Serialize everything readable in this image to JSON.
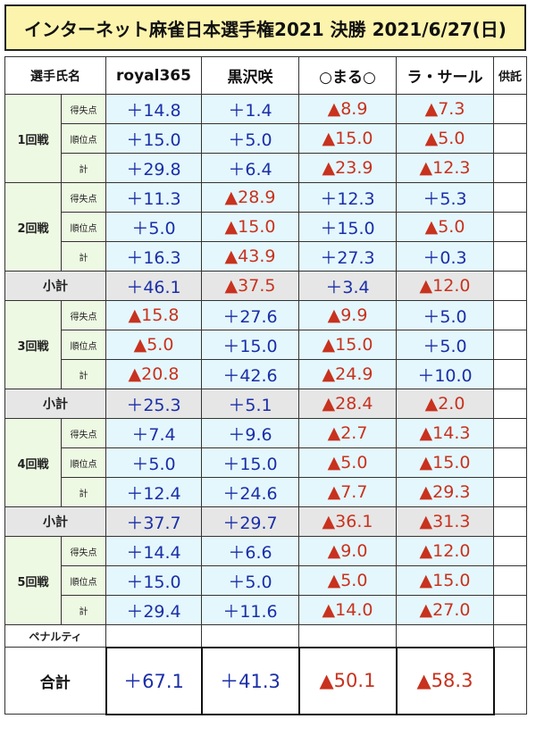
{
  "title": "インターネット麻雀日本選手権2021 決勝 2021/6/27(日)",
  "header": {
    "player_label": "選手氏名",
    "players": [
      "royal365",
      "黒沢咲",
      "○まる○",
      "ラ・サール"
    ],
    "deposit_label": "供託"
  },
  "row_labels": {
    "score": "得失点",
    "rank": "順位点",
    "total": "計"
  },
  "rounds": [
    {
      "name": "1回戦",
      "score": [
        "＋14.8",
        "＋1.4",
        "▲8.9",
        "▲7.3"
      ],
      "rank": [
        "＋15.0",
        "＋5.0",
        "▲15.0",
        "▲5.0"
      ],
      "total": [
        "＋29.8",
        "＋6.4",
        "▲23.9",
        "▲12.3"
      ]
    },
    {
      "name": "2回戦",
      "score": [
        "＋11.3",
        "▲28.9",
        "＋12.3",
        "＋5.3"
      ],
      "rank": [
        "＋5.0",
        "▲15.0",
        "＋15.0",
        "▲5.0"
      ],
      "total": [
        "＋16.3",
        "▲43.9",
        "＋27.3",
        "＋0.3"
      ]
    },
    {
      "name": "3回戦",
      "score": [
        "▲15.8",
        "＋27.6",
        "▲9.9",
        "＋5.0"
      ],
      "rank": [
        "▲5.0",
        "＋15.0",
        "▲15.0",
        "＋5.0"
      ],
      "total": [
        "▲20.8",
        "＋42.6",
        "▲24.9",
        "＋10.0"
      ]
    },
    {
      "name": "4回戦",
      "score": [
        "＋7.4",
        "＋9.6",
        "▲2.7",
        "▲14.3"
      ],
      "rank": [
        "＋5.0",
        "＋15.0",
        "▲5.0",
        "▲15.0"
      ],
      "total": [
        "＋12.4",
        "＋24.6",
        "▲7.7",
        "▲29.3"
      ]
    },
    {
      "name": "5回戦",
      "score": [
        "＋14.4",
        "＋6.6",
        "▲9.0",
        "▲12.0"
      ],
      "rank": [
        "＋15.0",
        "＋5.0",
        "▲5.0",
        "▲15.0"
      ],
      "total": [
        "＋29.4",
        "＋11.6",
        "▲14.0",
        "▲27.0"
      ]
    }
  ],
  "subtotal_label": "小計",
  "subtotals": [
    [
      "＋46.1",
      "▲37.5",
      "＋3.4",
      "▲12.0"
    ],
    [
      "＋25.3",
      "＋5.1",
      "▲28.4",
      "▲2.0"
    ],
    [
      "＋37.7",
      "＋29.7",
      "▲36.1",
      "▲31.3"
    ]
  ],
  "penalty_label": "ペナルティ",
  "grand_total_label": "合計",
  "grand_totals": [
    "＋67.1",
    "＋41.3",
    "▲50.1",
    "▲58.3"
  ],
  "colors": {
    "positive": "#1a2fa8",
    "negative": "#c8321e",
    "title_bg": "#fcf4ad",
    "label_bg": "#eef9e3",
    "cell_bg": "#e4f7fc",
    "subtotal_bg": "#e6e6e6"
  }
}
